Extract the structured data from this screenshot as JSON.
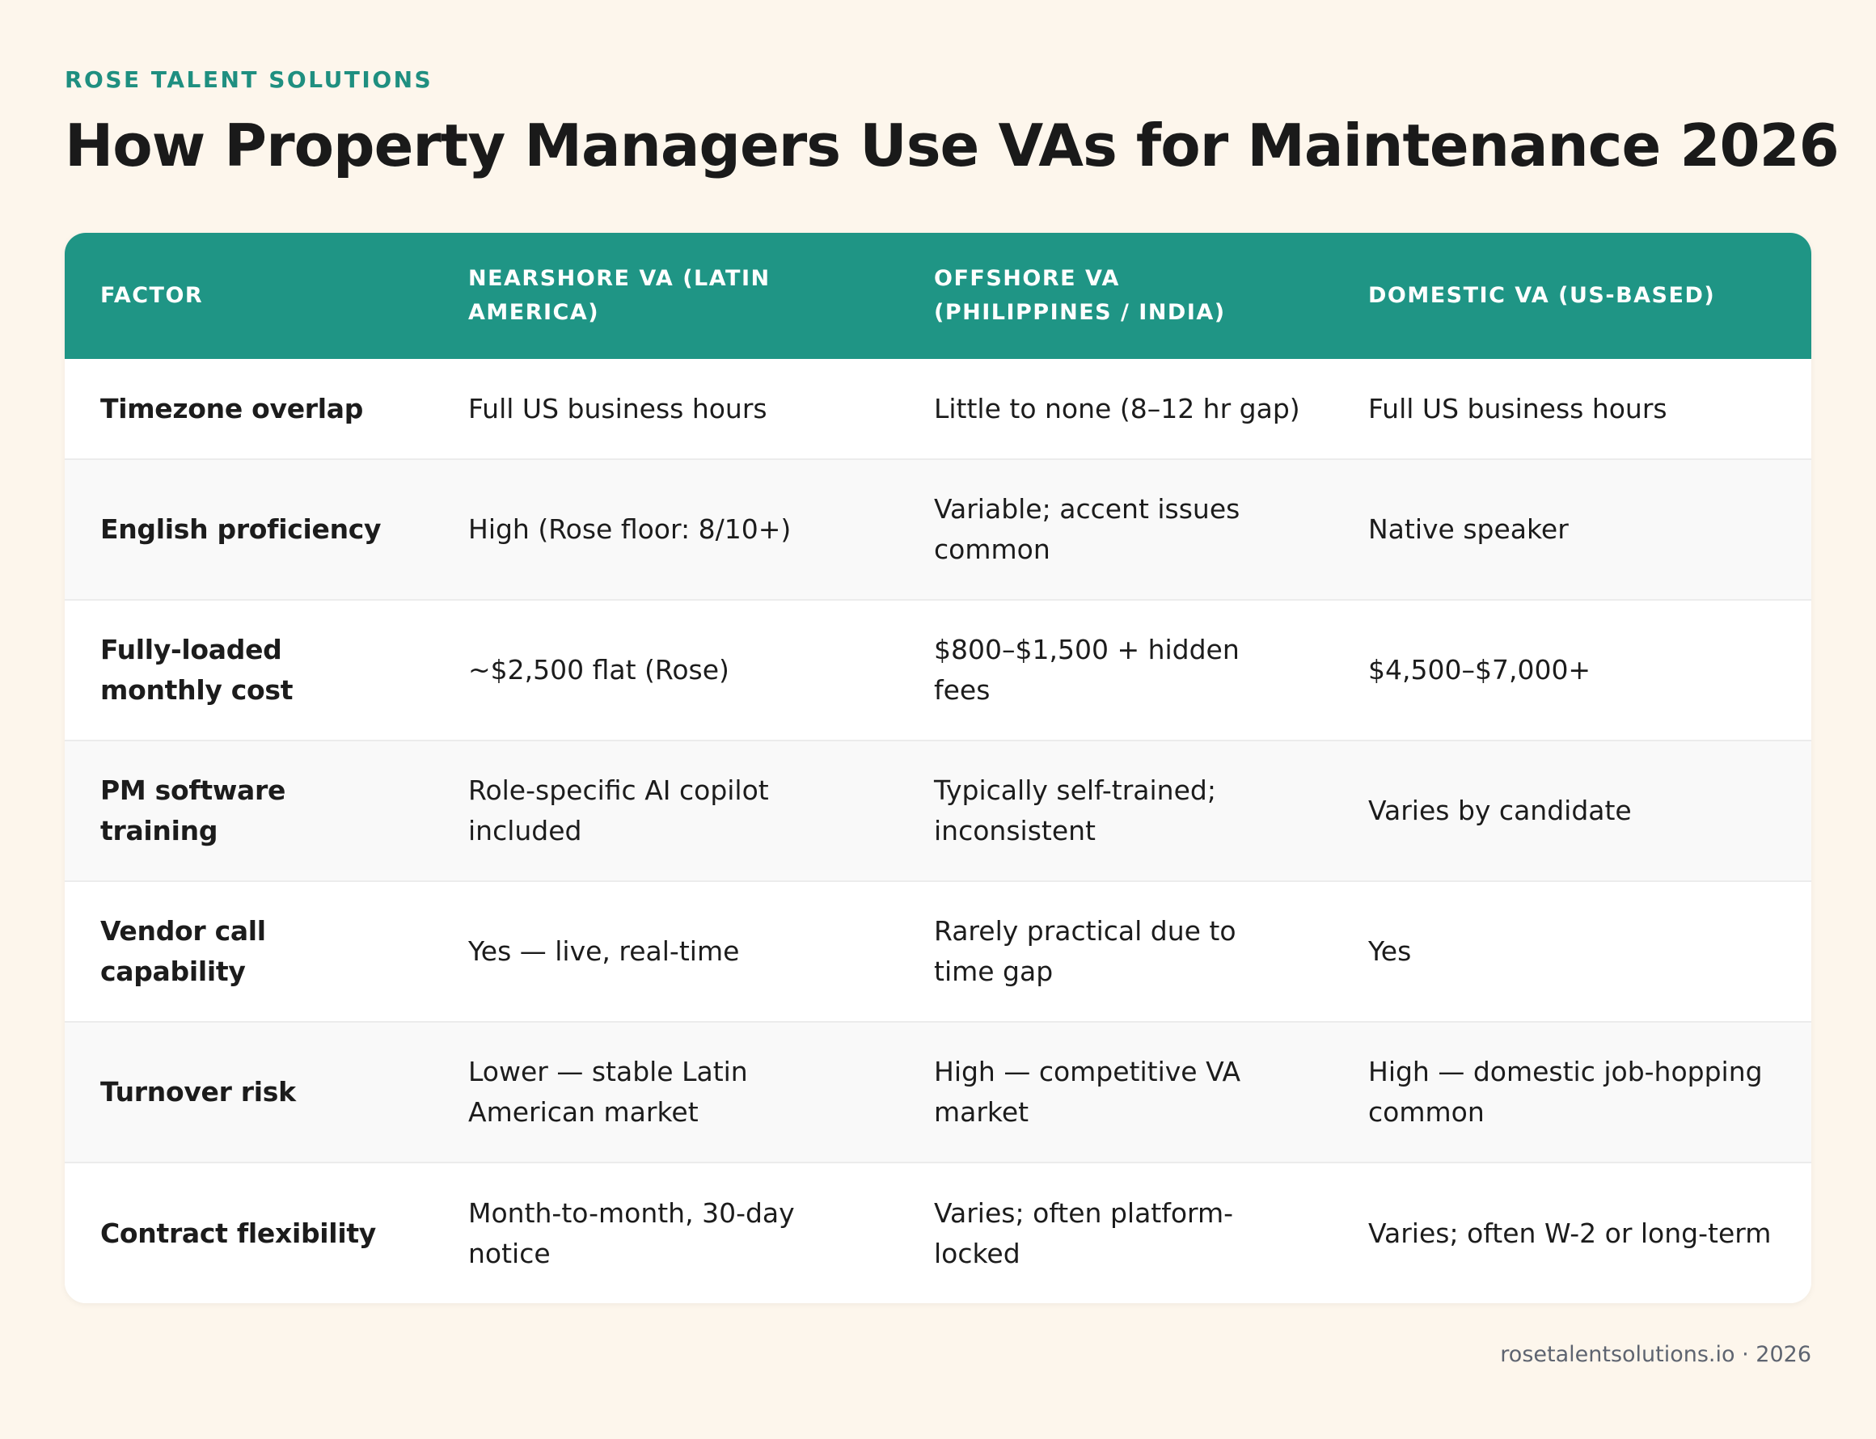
{
  "brand": "ROSE TALENT SOLUTIONS",
  "title": "How Property Managers Use VAs for Maintenance 2026",
  "table": {
    "headers": [
      "FACTOR",
      "NEARSHORE VA (LATIN AMERICA)",
      "OFFSHORE VA (PHILIPPINES / INDIA)",
      "DOMESTIC VA (US-BASED)"
    ],
    "rows": [
      [
        "Timezone overlap",
        "Full US business hours",
        "Little to none (8–12 hr gap)",
        "Full US business hours"
      ],
      [
        "English proficiency",
        "High (Rose floor: 8/10+)",
        "Variable; accent issues common",
        "Native speaker"
      ],
      [
        "Fully-loaded monthly cost",
        "~$2,500 flat (Rose)",
        "$800–$1,500 + hidden fees",
        "$4,500–$7,000+"
      ],
      [
        "PM software training",
        "Role-specific AI copilot included",
        "Typically self-trained; inconsistent",
        "Varies by candidate"
      ],
      [
        "Vendor call capability",
        "Yes — live, real-time",
        "Rarely practical due to time gap",
        "Yes"
      ],
      [
        "Turnover risk",
        "Lower — stable Latin American market",
        "High — competitive VA market",
        "High — domestic job-hopping common"
      ],
      [
        "Contract flexibility",
        "Month-to-month, 30-day notice",
        "Varies; often platform-locked",
        "Varies; often W-2 or long-term"
      ]
    ]
  },
  "footer": "rosetalentsolutions.io · 2026",
  "colors": {
    "accent": "#1f9585",
    "background": "#fdf6ec",
    "text": "#1c1c1c"
  }
}
